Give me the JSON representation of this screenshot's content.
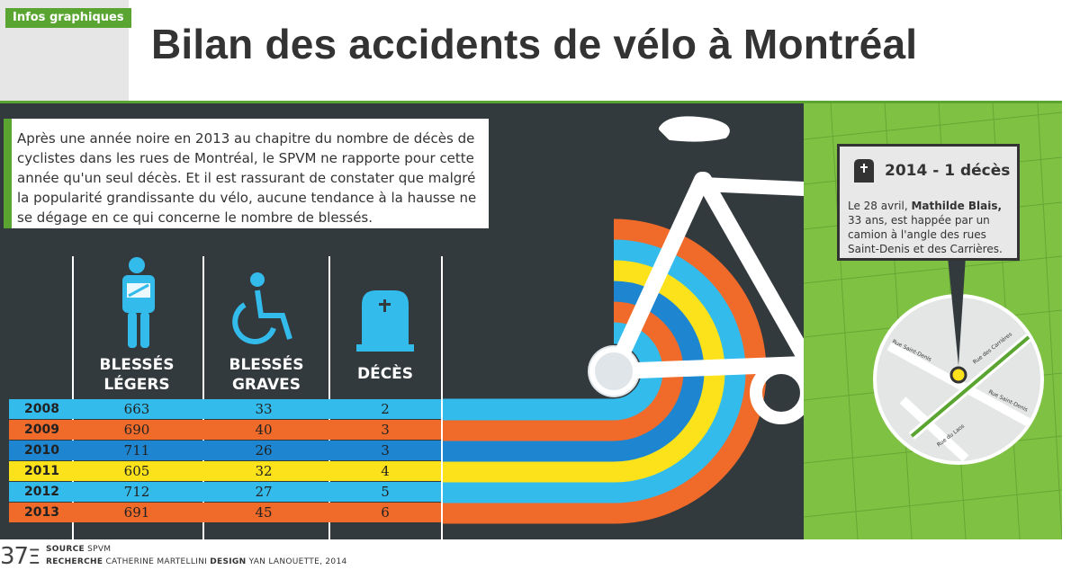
{
  "header": {
    "tag": "Infos graphiques",
    "title": "Bilan des accidents de vélo à Montréal"
  },
  "intro": "Après une année noire en 2013 au chapitre du nombre de décès de cyclistes dans les rues de Montréal, le SPVM ne rapporte pour cette année qu'un seul décès. Et il est rassurant de constater que malgré la popularité grandissante du vélo, aucune tendance à la hausse ne se dégage en ce qui concerne le nombre de blessés.",
  "columns": [
    {
      "line1": "BLESSÉS",
      "line2": "LÉGERS",
      "icon": "injured-person-icon"
    },
    {
      "line1": "BLESSÉS",
      "line2": "GRAVES",
      "icon": "wheelchair-icon"
    },
    {
      "line1": "DÉCÈS",
      "line2": "",
      "icon": "tombstone-icon"
    }
  ],
  "colors": {
    "blue": "#33bbec",
    "orange": "#f06a2a",
    "darkblue": "#1e86d0",
    "yellow": "#fbe21b",
    "background": "#333a3e",
    "green": "#5aa532"
  },
  "chart_data": {
    "type": "table",
    "categories": [
      "2008",
      "2009",
      "2010",
      "2011",
      "2012",
      "2013"
    ],
    "series": [
      {
        "name": "BLESSÉS LÉGERS",
        "values": [
          663,
          690,
          711,
          605,
          712,
          691
        ]
      },
      {
        "name": "BLESSÉS GRAVES",
        "values": [
          33,
          40,
          26,
          32,
          27,
          45
        ]
      },
      {
        "name": "DÉCÈS",
        "values": [
          2,
          3,
          3,
          4,
          5,
          6
        ]
      }
    ],
    "row_colors": [
      "#33bbec",
      "#f06a2a",
      "#1e86d0",
      "#fbe21b",
      "#33bbec",
      "#f06a2a"
    ]
  },
  "card": {
    "title": "2014 - 1 décès",
    "text_1": "Le 28 avril, ",
    "name": "Mathilde Blais,",
    "text_2": "33 ans, est happée par un camion à l'angle des rues Saint-Denis et des Carrières."
  },
  "map_labels": {
    "street1": "Rue Saint-Denis",
    "street2": "Rue des Carrières",
    "street3": "Rue Saint-Denis",
    "street4": "Rue du Laos"
  },
  "footer": {
    "page_number": "37",
    "source_label": "SOURCE",
    "source": "SPVM",
    "research_label": "RECHERCHE",
    "research": "CATHERINE MARTELLINI",
    "design_label": "DESIGN",
    "design": "YAN LANOUETTE, 2014"
  }
}
